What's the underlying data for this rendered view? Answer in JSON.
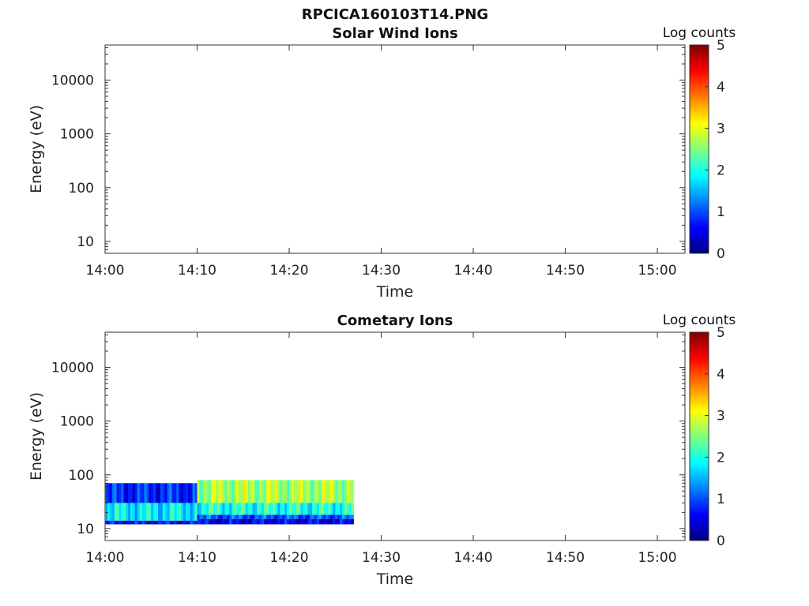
{
  "figure_title": "RPCICA160103T14.PNG",
  "chart_data": [
    {
      "type": "heatmap",
      "title": "Solar Wind Ions",
      "xlabel": "Time",
      "ylabel": "Energy (eV)",
      "x_ticks": [
        "14:00",
        "14:10",
        "14:20",
        "14:30",
        "14:40",
        "14:50",
        "15:00"
      ],
      "x_range": [
        "14:00",
        "15:03"
      ],
      "y_scale": "log",
      "y_ticks": [
        "10",
        "100",
        "1000",
        "10000"
      ],
      "y_range": [
        6,
        45000
      ],
      "colorbar": {
        "label": "Log counts",
        "ticks": [
          "0",
          "1",
          "2",
          "3",
          "4",
          "5"
        ],
        "range": [
          0,
          5
        ],
        "colormap": "jet"
      },
      "bands": []
    },
    {
      "type": "heatmap",
      "title": "Cometary Ions",
      "xlabel": "Time",
      "ylabel": "Energy (eV)",
      "x_ticks": [
        "14:00",
        "14:10",
        "14:20",
        "14:30",
        "14:40",
        "14:50",
        "15:00"
      ],
      "x_range": [
        "14:00",
        "15:03"
      ],
      "y_scale": "log",
      "y_ticks": [
        "10",
        "100",
        "1000",
        "10000"
      ],
      "y_range": [
        6,
        45000
      ],
      "colorbar": {
        "label": "Log counts",
        "ticks": [
          "0",
          "1",
          "2",
          "3",
          "4",
          "5"
        ],
        "range": [
          0,
          5
        ],
        "colormap": "jet"
      },
      "bands": [
        {
          "start": "14:00",
          "end": "14:10",
          "e_low": 14,
          "e_high": 30,
          "log_counts": 1.8
        },
        {
          "start": "14:00",
          "end": "14:10",
          "e_low": 30,
          "e_high": 70,
          "log_counts": 0.8
        },
        {
          "start": "14:00",
          "end": "14:10",
          "e_low": 12,
          "e_high": 14,
          "log_counts": 0.6
        },
        {
          "start": "14:10",
          "end": "14:27",
          "e_low": 30,
          "e_high": 80,
          "log_counts": 2.7
        },
        {
          "start": "14:10",
          "end": "14:27",
          "e_low": 18,
          "e_high": 30,
          "log_counts": 2.0
        },
        {
          "start": "14:10",
          "end": "14:27",
          "e_low": 15,
          "e_high": 18,
          "log_counts": 1.0
        },
        {
          "start": "14:10",
          "end": "14:27",
          "e_low": 12,
          "e_high": 15,
          "log_counts": 0.5
        }
      ]
    }
  ]
}
